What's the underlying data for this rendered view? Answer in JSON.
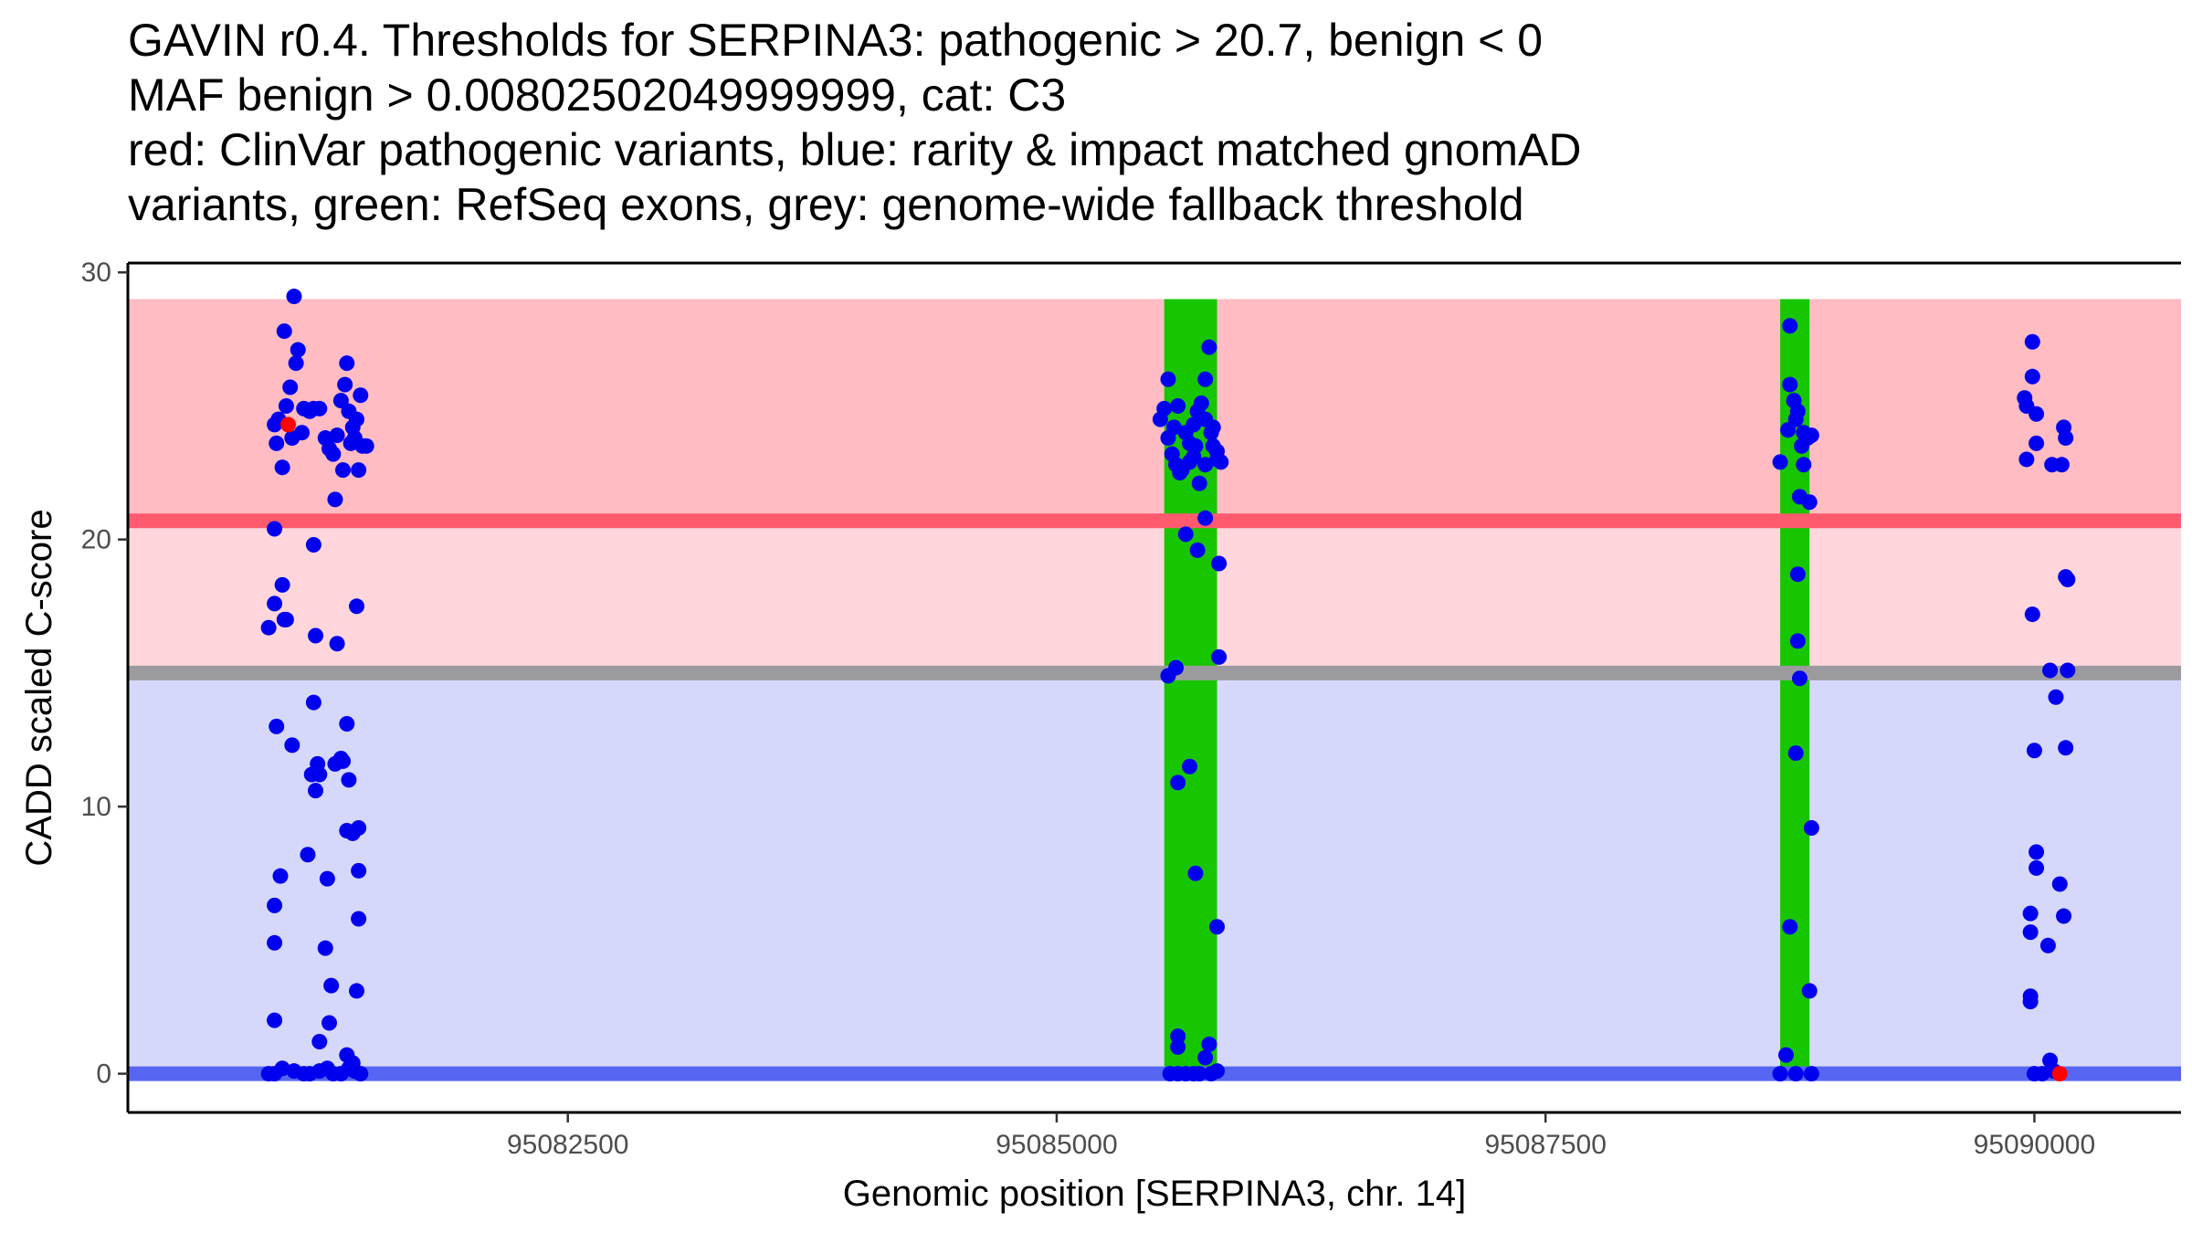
{
  "chart_data": {
    "type": "scatter",
    "title_lines": [
      "GAVIN r0.4. Thresholds for SERPINA3: pathogenic > 20.7, benign < 0",
      "MAF benign > 0.00802502049999999, cat: C3",
      "red: ClinVar pathogenic variants, blue: rarity & impact matched gnomAD",
      "variants, green: RefSeq exons, grey: genome-wide fallback threshold"
    ],
    "xlabel": "Genomic position [SERPINA3, chr. 14]",
    "ylabel": "CADD scaled C-score",
    "xlim": [
      95080250,
      95090750
    ],
    "ylim": [
      -1.45,
      30.35
    ],
    "x_ticks": [
      95082500,
      95085000,
      95087500,
      95090000
    ],
    "x_tick_labels": [
      "95082500",
      "95085000",
      "95087500",
      "95090000"
    ],
    "y_ticks": [
      0,
      10,
      20,
      30
    ],
    "y_tick_labels": [
      "0",
      "10",
      "20",
      "30"
    ],
    "grid": false,
    "colors": {
      "pathogenic_band": "#ffbcc3",
      "intermediate_band": "#ffd6db",
      "benign_band": "#d6d8fb",
      "pathogenic_line": "#ff5a6e",
      "fallback_line": "#9b9b9f",
      "benign_line": "#5766f2",
      "exon": "#18c600",
      "gnomad_point": "#0000ee",
      "clinvar_point": "#ff0000"
    },
    "bands": [
      {
        "name": "pathogenic",
        "y0": 20.7,
        "y1": 29.0,
        "color_key": "pathogenic_band"
      },
      {
        "name": "intermediate",
        "y0": 15.0,
        "y1": 20.7,
        "color_key": "intermediate_band"
      },
      {
        "name": "benign",
        "y0": 0.0,
        "y1": 15.0,
        "color_key": "benign_band"
      }
    ],
    "thresholds": [
      {
        "name": "pathogenic",
        "y": 20.7,
        "color_key": "pathogenic_line"
      },
      {
        "name": "fallback",
        "y": 15.0,
        "color_key": "fallback_line"
      },
      {
        "name": "benign",
        "y": 0.0,
        "color_key": "benign_line"
      }
    ],
    "exons": [
      {
        "start": 95085550,
        "end": 95085820
      },
      {
        "start": 95088700,
        "end": 95088850
      }
    ],
    "series": [
      {
        "color_key": "gnomad_point",
        "points": [
          [
            95081100,
            29.1
          ],
          [
            95081050,
            27.8
          ],
          [
            95081120,
            27.1
          ],
          [
            95081110,
            26.6
          ],
          [
            95081080,
            25.7
          ],
          [
            95081060,
            25.0
          ],
          [
            95081150,
            24.9
          ],
          [
            95081200,
            24.9
          ],
          [
            95081020,
            24.5
          ],
          [
            95081000,
            24.3
          ],
          [
            95081140,
            24.0
          ],
          [
            95081010,
            23.6
          ],
          [
            95081090,
            23.8
          ],
          [
            95081040,
            22.7
          ],
          [
            95081180,
            24.8
          ],
          [
            95081230,
            24.9
          ],
          [
            95081260,
            23.8
          ],
          [
            95081280,
            23.4
          ],
          [
            95081300,
            23.2
          ],
          [
            95081320,
            23.9
          ],
          [
            95081340,
            25.2
          ],
          [
            95081360,
            25.8
          ],
          [
            95081370,
            26.6
          ],
          [
            95081380,
            24.8
          ],
          [
            95081400,
            24.2
          ],
          [
            95081410,
            23.8
          ],
          [
            95081420,
            24.5
          ],
          [
            95081430,
            22.6
          ],
          [
            95081440,
            25.4
          ],
          [
            95081450,
            23.5
          ],
          [
            95081470,
            23.5
          ],
          [
            95081350,
            22.6
          ],
          [
            95081390,
            23.6
          ],
          [
            95081310,
            21.5
          ],
          [
            95081000,
            20.4
          ],
          [
            95081200,
            19.8
          ],
          [
            95081040,
            18.3
          ],
          [
            95081420,
            17.5
          ],
          [
            95081000,
            17.6
          ],
          [
            95080970,
            16.7
          ],
          [
            95081050,
            17.0
          ],
          [
            95081060,
            17.0
          ],
          [
            95081210,
            16.4
          ],
          [
            95081320,
            16.1
          ],
          [
            95081200,
            13.9
          ],
          [
            95081010,
            13.0
          ],
          [
            95081370,
            13.1
          ],
          [
            95081090,
            12.3
          ],
          [
            95081190,
            11.2
          ],
          [
            95081220,
            11.6
          ],
          [
            95081230,
            11.2
          ],
          [
            95081310,
            11.6
          ],
          [
            95081340,
            11.8
          ],
          [
            95081350,
            11.7
          ],
          [
            95081380,
            11.0
          ],
          [
            95081210,
            10.6
          ],
          [
            95081370,
            9.1
          ],
          [
            95081400,
            9.0
          ],
          [
            95081430,
            9.2
          ],
          [
            95081170,
            8.2
          ],
          [
            95081030,
            7.4
          ],
          [
            95081270,
            7.3
          ],
          [
            95081430,
            7.6
          ],
          [
            95081000,
            6.3
          ],
          [
            95081000,
            4.9
          ],
          [
            95081260,
            4.7
          ],
          [
            95081430,
            5.8
          ],
          [
            95081290,
            3.3
          ],
          [
            95081420,
            3.1
          ],
          [
            95081000,
            2.0
          ],
          [
            95081280,
            1.9
          ],
          [
            95081230,
            1.2
          ],
          [
            95081370,
            0.7
          ],
          [
            95081400,
            0.4
          ],
          [
            95080970,
            0.0
          ],
          [
            95081000,
            0.0
          ],
          [
            95081040,
            0.2
          ],
          [
            95081100,
            0.1
          ],
          [
            95081150,
            0.0
          ],
          [
            95081180,
            0.0
          ],
          [
            95081230,
            0.1
          ],
          [
            95081270,
            0.2
          ],
          [
            95081300,
            0.0
          ],
          [
            95081340,
            0.0
          ],
          [
            95081380,
            0.2
          ],
          [
            95081410,
            0.1
          ],
          [
            95081440,
            0.0
          ],
          [
            95085570,
            26.0
          ],
          [
            95085620,
            25.0
          ],
          [
            95085550,
            24.9
          ],
          [
            95085530,
            24.5
          ],
          [
            95085600,
            24.2
          ],
          [
            95085570,
            23.8
          ],
          [
            95085590,
            23.2
          ],
          [
            95085610,
            22.8
          ],
          [
            95085630,
            22.5
          ],
          [
            95085660,
            24.0
          ],
          [
            95085680,
            23.6
          ],
          [
            95085700,
            24.3
          ],
          [
            95085720,
            24.8
          ],
          [
            95085740,
            25.1
          ],
          [
            95085760,
            26.0
          ],
          [
            95085780,
            27.2
          ],
          [
            95085760,
            24.5
          ],
          [
            95085790,
            24.0
          ],
          [
            95085700,
            23.1
          ],
          [
            95085730,
            22.1
          ],
          [
            95085760,
            22.8
          ],
          [
            95085800,
            23.5
          ],
          [
            95085820,
            23.3
          ],
          [
            95085820,
            23.0
          ],
          [
            95085840,
            22.9
          ],
          [
            95085800,
            24.2
          ],
          [
            95085640,
            22.6
          ],
          [
            95085680,
            22.9
          ],
          [
            95085710,
            23.5
          ],
          [
            95085660,
            20.2
          ],
          [
            95085760,
            20.8
          ],
          [
            95085720,
            19.6
          ],
          [
            95085830,
            19.1
          ],
          [
            95085610,
            15.2
          ],
          [
            95085570,
            14.9
          ],
          [
            95085830,
            15.6
          ],
          [
            95085680,
            11.5
          ],
          [
            95085620,
            10.9
          ],
          [
            95085710,
            7.5
          ],
          [
            95085820,
            5.5
          ],
          [
            95085620,
            1.4
          ],
          [
            95085620,
            1.0
          ],
          [
            95085780,
            1.1
          ],
          [
            95085760,
            0.6
          ],
          [
            95085580,
            0.0
          ],
          [
            95085620,
            0.0
          ],
          [
            95085660,
            0.0
          ],
          [
            95085700,
            0.0
          ],
          [
            95085730,
            0.0
          ],
          [
            95085790,
            0.0
          ],
          [
            95085820,
            0.1
          ],
          [
            95088750,
            28.0
          ],
          [
            95088750,
            25.8
          ],
          [
            95088770,
            25.2
          ],
          [
            95088780,
            24.5
          ],
          [
            95088740,
            24.1
          ],
          [
            95088790,
            24.8
          ],
          [
            95088820,
            24.0
          ],
          [
            95088840,
            23.8
          ],
          [
            95088810,
            23.5
          ],
          [
            95088860,
            23.9
          ],
          [
            95088700,
            22.9
          ],
          [
            95088820,
            22.8
          ],
          [
            95088800,
            21.6
          ],
          [
            95088850,
            21.4
          ],
          [
            95088790,
            18.7
          ],
          [
            95088790,
            16.2
          ],
          [
            95088800,
            14.8
          ],
          [
            95088780,
            12.0
          ],
          [
            95088860,
            9.2
          ],
          [
            95088750,
            5.5
          ],
          [
            95088850,
            3.1
          ],
          [
            95088730,
            0.7
          ],
          [
            95088700,
            0.0
          ],
          [
            95088780,
            0.0
          ],
          [
            95088860,
            0.0
          ],
          [
            95089990,
            27.4
          ],
          [
            95089990,
            26.1
          ],
          [
            95089950,
            25.3
          ],
          [
            95089960,
            25.0
          ],
          [
            95090010,
            24.7
          ],
          [
            95090150,
            24.2
          ],
          [
            95090160,
            23.8
          ],
          [
            95090010,
            23.6
          ],
          [
            95089960,
            23.0
          ],
          [
            95090090,
            22.8
          ],
          [
            95090140,
            22.8
          ],
          [
            95090160,
            18.6
          ],
          [
            95090170,
            18.5
          ],
          [
            95089990,
            17.2
          ],
          [
            95090080,
            15.1
          ],
          [
            95090170,
            15.1
          ],
          [
            95090110,
            14.1
          ],
          [
            95090000,
            12.1
          ],
          [
            95090160,
            12.2
          ],
          [
            95090010,
            8.3
          ],
          [
            95090010,
            7.7
          ],
          [
            95090130,
            7.1
          ],
          [
            95089980,
            6.0
          ],
          [
            95090150,
            5.9
          ],
          [
            95089980,
            5.3
          ],
          [
            95090070,
            4.8
          ],
          [
            95089980,
            2.9
          ],
          [
            95089980,
            2.7
          ],
          [
            95090080,
            0.5
          ],
          [
            95090000,
            0.0
          ],
          [
            95090040,
            0.0
          ],
          [
            95090100,
            0.1
          ]
        ]
      },
      {
        "color_key": "clinvar_point",
        "points": [
          [
            95081070,
            24.3
          ],
          [
            95090130,
            0.0
          ]
        ]
      }
    ]
  }
}
